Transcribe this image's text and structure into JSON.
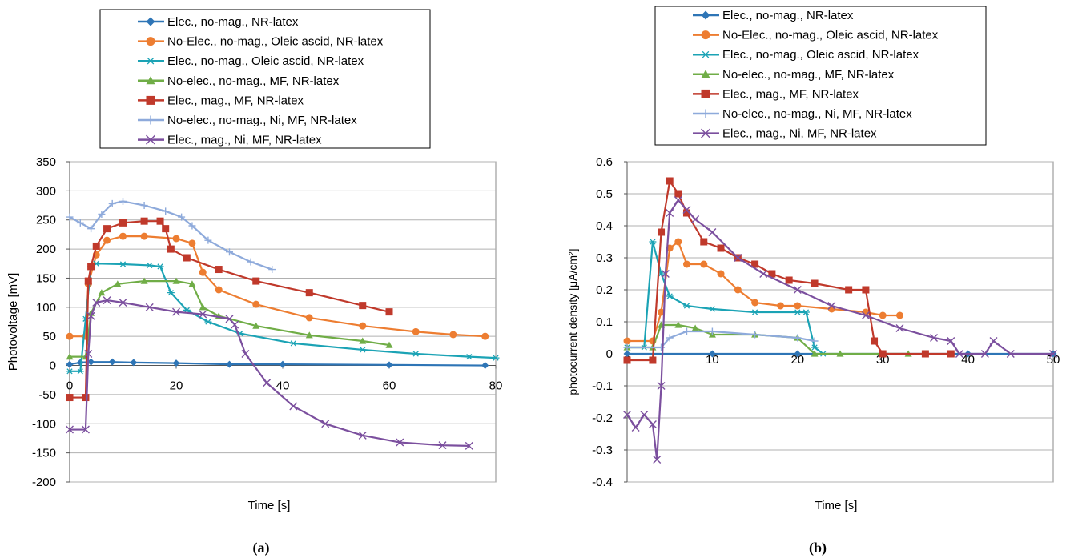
{
  "panels": [
    {
      "label": "(a)"
    },
    {
      "label": "(b)"
    }
  ],
  "series_style": [
    {
      "color": "#2E75B6",
      "marker": "diamond"
    },
    {
      "color": "#ED7D31",
      "marker": "circle"
    },
    {
      "color": "#1BA3B5",
      "marker": "asterisk"
    },
    {
      "color": "#70AD47",
      "marker": "triangle"
    },
    {
      "color": "#C0392B",
      "marker": "square"
    },
    {
      "color": "#8EAADB",
      "marker": "plus"
    },
    {
      "color": "#7B4F9E",
      "marker": "cross"
    }
  ],
  "chart_data": [
    {
      "type": "line",
      "xlabel": "Time   [s]",
      "ylabel": "Photovoltage  [mV]",
      "xlim": [
        0,
        80
      ],
      "ylim": [
        -200,
        350
      ],
      "xticks": [
        "0",
        "20",
        "40",
        "60",
        "80"
      ],
      "yticks": [
        "-200",
        "-150",
        "-100",
        "-50",
        "0",
        "50",
        "100",
        "150",
        "200",
        "250",
        "300",
        "350"
      ],
      "grid": true,
      "legend_position": "top",
      "series": [
        {
          "name": "Elec., no-mag., NR-latex",
          "points": [
            [
              0,
              2
            ],
            [
              2,
              5
            ],
            [
              4,
              6
            ],
            [
              8,
              6
            ],
            [
              12,
              5
            ],
            [
              20,
              4
            ],
            [
              30,
              2
            ],
            [
              40,
              2
            ],
            [
              60,
              1
            ],
            [
              78,
              0
            ]
          ]
        },
        {
          "name": "No-Elec., no-mag., Oleic ascid, NR-latex",
          "points": [
            [
              0,
              50
            ],
            [
              3,
              50
            ],
            [
              3.5,
              140
            ],
            [
              5,
              190
            ],
            [
              7,
              215
            ],
            [
              10,
              222
            ],
            [
              14,
              222
            ],
            [
              20,
              218
            ],
            [
              23,
              210
            ],
            [
              25,
              160
            ],
            [
              28,
              130
            ],
            [
              35,
              105
            ],
            [
              45,
              82
            ],
            [
              55,
              68
            ],
            [
              65,
              58
            ],
            [
              72,
              53
            ],
            [
              78,
              50
            ]
          ]
        },
        {
          "name": "Elec., no-mag., Oleic ascid, NR-latex",
          "points": [
            [
              0,
              -10
            ],
            [
              2,
              -10
            ],
            [
              3,
              80
            ],
            [
              4,
              170
            ],
            [
              5,
              175
            ],
            [
              10,
              174
            ],
            [
              15,
              172
            ],
            [
              17,
              170
            ],
            [
              19,
              125
            ],
            [
              22,
              95
            ],
            [
              26,
              75
            ],
            [
              32,
              55
            ],
            [
              42,
              38
            ],
            [
              55,
              27
            ],
            [
              65,
              20
            ],
            [
              75,
              15
            ],
            [
              80,
              13
            ]
          ]
        },
        {
          "name": "No-elec., no-mag., MF, NR-latex",
          "points": [
            [
              0,
              15
            ],
            [
              3,
              15
            ],
            [
              4,
              90
            ],
            [
              6,
              125
            ],
            [
              9,
              140
            ],
            [
              14,
              145
            ],
            [
              20,
              145
            ],
            [
              23,
              140
            ],
            [
              25,
              100
            ],
            [
              28,
              85
            ],
            [
              35,
              68
            ],
            [
              45,
              52
            ],
            [
              55,
              42
            ],
            [
              60,
              35
            ]
          ]
        },
        {
          "name": "Elec., mag., MF, NR-latex",
          "points": [
            [
              0,
              -55
            ],
            [
              3,
              -55
            ],
            [
              3.5,
              145
            ],
            [
              4,
              170
            ],
            [
              5,
              205
            ],
            [
              7,
              235
            ],
            [
              10,
              245
            ],
            [
              14,
              248
            ],
            [
              17,
              248
            ],
            [
              18,
              235
            ],
            [
              19,
              200
            ],
            [
              22,
              185
            ],
            [
              28,
              165
            ],
            [
              35,
              145
            ],
            [
              45,
              125
            ],
            [
              55,
              103
            ],
            [
              60,
              92
            ]
          ]
        },
        {
          "name": "No-elec., no-mag., Ni, MF, NR-latex",
          "points": [
            [
              0,
              255
            ],
            [
              2,
              245
            ],
            [
              4,
              235
            ],
            [
              6,
              260
            ],
            [
              8,
              278
            ],
            [
              10,
              282
            ],
            [
              14,
              275
            ],
            [
              18,
              265
            ],
            [
              21,
              255
            ],
            [
              23,
              240
            ],
            [
              26,
              215
            ],
            [
              30,
              195
            ],
            [
              34,
              178
            ],
            [
              38,
              165
            ]
          ]
        },
        {
          "name": "Elec., mag., Ni, MF, NR-latex",
          "points": [
            [
              0,
              -110
            ],
            [
              3,
              -110
            ],
            [
              3.5,
              20
            ],
            [
              4,
              85
            ],
            [
              5,
              108
            ],
            [
              7,
              112
            ],
            [
              10,
              108
            ],
            [
              15,
              100
            ],
            [
              20,
              92
            ],
            [
              25,
              88
            ],
            [
              30,
              80
            ],
            [
              31,
              70
            ],
            [
              33,
              20
            ],
            [
              37,
              -30
            ],
            [
              42,
              -70
            ],
            [
              48,
              -100
            ],
            [
              55,
              -120
            ],
            [
              62,
              -132
            ],
            [
              70,
              -137
            ],
            [
              75,
              -138
            ]
          ]
        }
      ]
    },
    {
      "type": "line",
      "xlabel": "Time   [s]",
      "ylabel": "photocurrent density  [μA/cm²]",
      "xlim": [
        0,
        50
      ],
      "ylim": [
        -0.4,
        0.6
      ],
      "xticks": [
        "0",
        "10",
        "20",
        "30",
        "40",
        "50"
      ],
      "yticks": [
        "-0.4",
        "-0.3",
        "-0.2",
        "-0.1",
        "0",
        "0.1",
        "0.2",
        "0.3",
        "0.4",
        "0.5",
        "0.6"
      ],
      "grid": true,
      "legend_position": "top",
      "series": [
        {
          "name": "Elec., no-mag., NR-latex",
          "points": [
            [
              0,
              0
            ],
            [
              10,
              0
            ],
            [
              20,
              0
            ],
            [
              30,
              0
            ],
            [
              40,
              0
            ],
            [
              50,
              0
            ]
          ]
        },
        {
          "name": "No-Elec., no-mag., Oleic ascid, NR-latex",
          "points": [
            [
              0,
              0.04
            ],
            [
              3,
              0.04
            ],
            [
              4,
              0.13
            ],
            [
              5,
              0.33
            ],
            [
              6,
              0.35
            ],
            [
              7,
              0.28
            ],
            [
              9,
              0.28
            ],
            [
              11,
              0.25
            ],
            [
              13,
              0.2
            ],
            [
              15,
              0.16
            ],
            [
              18,
              0.15
            ],
            [
              20,
              0.15
            ],
            [
              24,
              0.14
            ],
            [
              28,
              0.13
            ],
            [
              30,
              0.12
            ],
            [
              32,
              0.12
            ]
          ]
        },
        {
          "name": "Elec., no-mag., Oleic ascid, NR-latex",
          "points": [
            [
              0,
              0.02
            ],
            [
              2,
              0.02
            ],
            [
              3,
              0.35
            ],
            [
              4,
              0.25
            ],
            [
              5,
              0.18
            ],
            [
              7,
              0.15
            ],
            [
              10,
              0.14
            ],
            [
              15,
              0.13
            ],
            [
              20,
              0.13
            ],
            [
              21,
              0.13
            ],
            [
              22,
              0.02
            ],
            [
              23,
              0
            ]
          ]
        },
        {
          "name": "No-elec., no-mag., MF, NR-latex",
          "points": [
            [
              0,
              0.02
            ],
            [
              3,
              0.02
            ],
            [
              4,
              0.09
            ],
            [
              6,
              0.09
            ],
            [
              8,
              0.08
            ],
            [
              10,
              0.06
            ],
            [
              15,
              0.06
            ],
            [
              20,
              0.05
            ],
            [
              22,
              0
            ],
            [
              25,
              0
            ],
            [
              30,
              0
            ],
            [
              33,
              0
            ]
          ]
        },
        {
          "name": "Elec., mag., MF, NR-latex",
          "points": [
            [
              0,
              -0.02
            ],
            [
              3,
              -0.02
            ],
            [
              4,
              0.38
            ],
            [
              5,
              0.54
            ],
            [
              6,
              0.5
            ],
            [
              7,
              0.44
            ],
            [
              9,
              0.35
            ],
            [
              11,
              0.33
            ],
            [
              13,
              0.3
            ],
            [
              15,
              0.28
            ],
            [
              17,
              0.25
            ],
            [
              19,
              0.23
            ],
            [
              22,
              0.22
            ],
            [
              26,
              0.2
            ],
            [
              28,
              0.2
            ],
            [
              29,
              0.04
            ],
            [
              30,
              0
            ],
            [
              35,
              0
            ],
            [
              38,
              0
            ]
          ]
        },
        {
          "name": "No-elec., no-mag., Ni, MF, NR-latex",
          "points": [
            [
              0,
              0.02
            ],
            [
              4,
              0.02
            ],
            [
              5,
              0.05
            ],
            [
              7,
              0.07
            ],
            [
              10,
              0.07
            ],
            [
              15,
              0.06
            ],
            [
              20,
              0.05
            ],
            [
              22,
              0.04
            ]
          ]
        },
        {
          "name": "Elec., mag., Ni, MF, NR-latex",
          "points": [
            [
              0,
              -0.19
            ],
            [
              1,
              -0.23
            ],
            [
              2,
              -0.19
            ],
            [
              3,
              -0.22
            ],
            [
              3.5,
              -0.33
            ],
            [
              4,
              -0.1
            ],
            [
              4.5,
              0.25
            ],
            [
              5,
              0.44
            ],
            [
              6,
              0.48
            ],
            [
              7,
              0.45
            ],
            [
              8,
              0.42
            ],
            [
              10,
              0.38
            ],
            [
              13,
              0.3
            ],
            [
              16,
              0.25
            ],
            [
              20,
              0.2
            ],
            [
              24,
              0.15
            ],
            [
              28,
              0.12
            ],
            [
              32,
              0.08
            ],
            [
              36,
              0.05
            ],
            [
              38,
              0.04
            ],
            [
              39,
              0
            ],
            [
              42,
              0
            ],
            [
              43,
              0.04
            ],
            [
              45,
              0
            ],
            [
              50,
              0
            ]
          ]
        }
      ]
    }
  ]
}
